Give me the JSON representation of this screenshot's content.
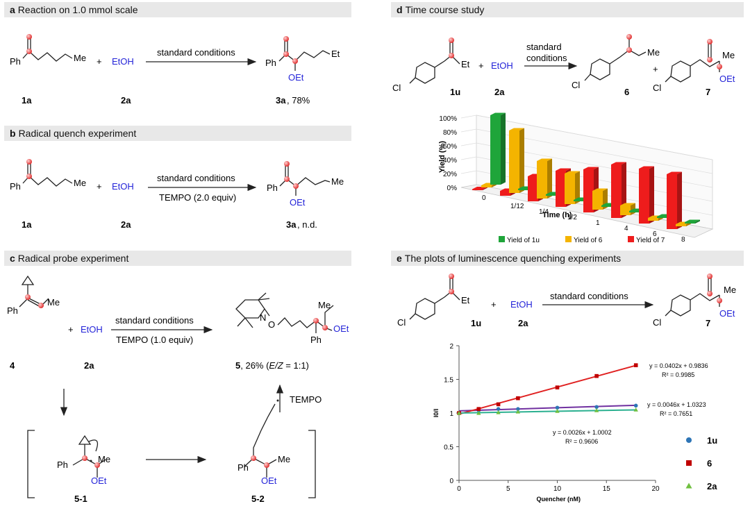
{
  "panels": {
    "a": {
      "letter": "a",
      "title": "Reaction on 1.0  mmol scale",
      "conditions": "standard conditions",
      "reagent": "EtOH",
      "plus": "+",
      "sub1": "Ph",
      "me": "Me",
      "et": "Et",
      "oet": "OEt",
      "label_1": "1a",
      "label_2": "2a",
      "label_3": "3a",
      "yield": ", 78%"
    },
    "b": {
      "letter": "b",
      "title": "Radical quench experiment",
      "conditions": "standard conditions",
      "additive": "TEMPO (2.0 equiv)",
      "reagent": "EtOH",
      "plus": "+",
      "sub1": "Ph",
      "me": "Me",
      "oet": "OEt",
      "label_1": "1a",
      "label_2": "2a",
      "label_3": "3a",
      "yield": ", n.d."
    },
    "c": {
      "letter": "c",
      "title": "Radical probe experiment",
      "conditions": "standard conditions",
      "additive": "TEMPO (1.0 equiv)",
      "reagent": "EtOH",
      "plus": "+",
      "ph": "Ph",
      "me": "Me",
      "oet": "OEt",
      "n": "N",
      "o": "O",
      "label_4": "4",
      "label_2a": "2a",
      "label_5": "5",
      "yield_5": ", 26% (",
      "ez": "E/Z",
      "ratio": " = 1:1)",
      "tempo": "TEMPO",
      "label_51": "5-1",
      "label_52": "5-2"
    },
    "d": {
      "letter": "d",
      "title": "Time course study",
      "conditions_1": "standard",
      "conditions_2": "conditions",
      "reagent": "EtOH",
      "plus": "+",
      "cl": "Cl",
      "et": "Et",
      "me": "Me",
      "oet": "OEt",
      "label_1u": "1u",
      "label_2a": "2a",
      "label_6": "6",
      "label_7": "7"
    },
    "e": {
      "letter": "e",
      "title": "The plots of luminescence quenching experiments",
      "conditions": "standard conditions",
      "reagent": "EtOH",
      "plus": "+",
      "cl": "Cl",
      "et": "Et",
      "me": "Me",
      "oet": "OEt",
      "label_1u": "1u",
      "label_2a": "2a",
      "label_7": "7"
    }
  },
  "chart_data": [
    {
      "type": "bar",
      "title": "",
      "xlabel": "Time (h)",
      "ylabel": "Yield (%)",
      "categories": [
        "0",
        "1/12",
        "1/4",
        "1/2",
        "1",
        "4",
        "6",
        "8"
      ],
      "ytick_labels": [
        "0%",
        "20%",
        "40%",
        "60%",
        "80%",
        "100%"
      ],
      "ylim": [
        0,
        100
      ],
      "series": [
        {
          "name": "Yield of 1u",
          "color": "#1fa53a",
          "values": [
            100,
            2,
            2,
            2,
            2,
            2,
            2,
            2
          ]
        },
        {
          "name": "Yield of 6",
          "color": "#f4b400",
          "values": [
            3,
            90,
            54,
            44,
            27,
            14,
            4,
            3
          ]
        },
        {
          "name": "Yield of 7",
          "color": "#ee1c1c",
          "values": [
            0,
            7,
            36,
            52,
            62,
            77,
            79,
            79
          ]
        }
      ],
      "legend_position": "bottom"
    },
    {
      "type": "scatter",
      "title": "",
      "xlabel": "Quencher (nM)",
      "ylabel": "I0/I",
      "xlim": [
        0,
        20
      ],
      "ylim": [
        0,
        2
      ],
      "xticks": [
        "0",
        "5",
        "10",
        "15",
        "20"
      ],
      "yticks": [
        "0",
        "0.5",
        "1",
        "1.5",
        "2"
      ],
      "series": [
        {
          "name": "1u",
          "color": "#2e75b6",
          "marker": "circle",
          "x": [
            0,
            2,
            4,
            6,
            10,
            14,
            18
          ],
          "y": [
            1.0,
            1.04,
            1.06,
            1.06,
            1.08,
            1.09,
            1.11
          ],
          "fit": "y = 0.0046x + 1.0323",
          "r2": "R² = 0.7651",
          "fit_slope": 0.0046,
          "fit_intercept": 1.0323,
          "line_color": "#7030a0"
        },
        {
          "name": "6",
          "color": "#c00000",
          "marker": "square",
          "x": [
            0,
            2,
            4,
            6,
            10,
            14,
            18
          ],
          "y": [
            1.0,
            1.06,
            1.13,
            1.22,
            1.38,
            1.55,
            1.71
          ],
          "fit": "y = 0.0402x + 0.9836",
          "r2": "R² = 0.9985",
          "fit_slope": 0.0402,
          "fit_intercept": 0.9836,
          "line_color": "#e02020"
        },
        {
          "name": "2a",
          "color": "#70c040",
          "marker": "triangle",
          "x": [
            0,
            2,
            4,
            6,
            10,
            14,
            18
          ],
          "y": [
            1.0,
            1.0,
            1.01,
            1.02,
            1.03,
            1.04,
            1.05
          ],
          "fit": "y = 0.0026x + 1.0002",
          "r2": "R² = 0.9606",
          "fit_slope": 0.0026,
          "fit_intercept": 1.0002,
          "line_color": "#2bb090"
        }
      ],
      "legend_position": "right"
    }
  ]
}
